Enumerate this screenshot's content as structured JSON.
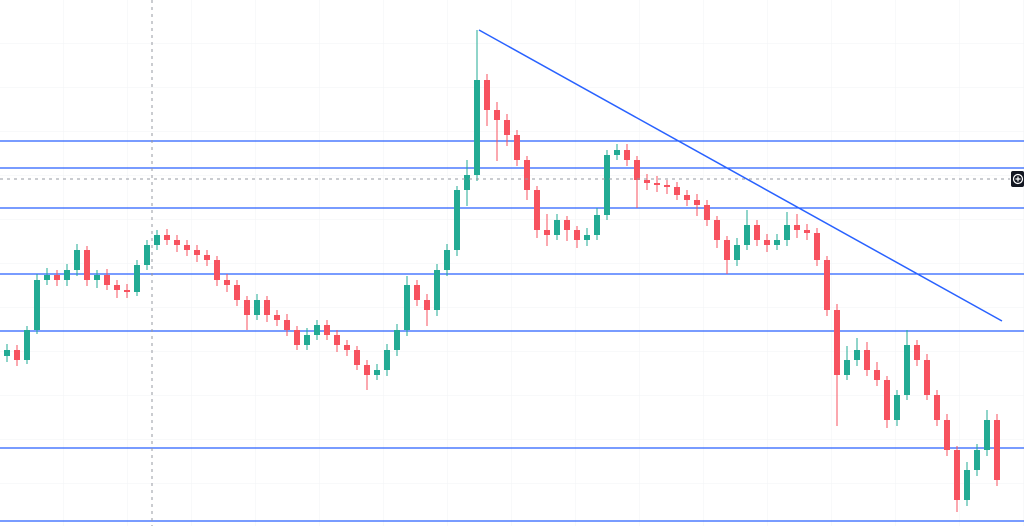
{
  "chart_data": {
    "type": "candlestick",
    "open": [
      170,
      176,
      166,
      196,
      246,
      251,
      246,
      256,
      276,
      246,
      251,
      241,
      236,
      234,
      261,
      281,
      291,
      286,
      281,
      276,
      271,
      266,
      246,
      241,
      226,
      211,
      226,
      211,
      206,
      196,
      181,
      191,
      201,
      191,
      181,
      176,
      161,
      151,
      156,
      176,
      196,
      241,
      226,
      216,
      256,
      276,
      336,
      351,
      446,
      416,
      406,
      391,
      366,
      336,
      296,
      291,
      306,
      296,
      286,
      291,
      311,
      371,
      376,
      366,
      346,
      343,
      341,
      339,
      331,
      326,
      321,
      306,
      286,
      266,
      281,
      301,
      286,
      281,
      286,
      301,
      296,
      293,
      266,
      216,
      151,
      166,
      176,
      156,
      146,
      106,
      131,
      181,
      166,
      131,
      106,
      76,
      26,
      56,
      76,
      106
    ],
    "high": [
      182,
      181,
      200,
      252,
      258,
      256,
      262,
      282,
      280,
      256,
      257,
      246,
      242,
      266,
      286,
      296,
      297,
      291,
      286,
      281,
      276,
      270,
      252,
      246,
      230,
      232,
      230,
      216,
      212,
      200,
      198,
      206,
      206,
      196,
      186,
      180,
      166,
      162,
      182,
      202,
      250,
      246,
      232,
      262,
      282,
      340,
      366,
      496,
      452,
      424,
      412,
      396,
      370,
      340,
      312,
      312,
      310,
      300,
      298,
      318,
      376,
      382,
      382,
      370,
      352,
      350,
      346,
      344,
      336,
      332,
      326,
      310,
      290,
      288,
      316,
      306,
      292,
      292,
      314,
      312,
      302,
      298,
      270,
      222,
      180,
      188,
      184,
      164,
      150,
      136,
      196,
      186,
      172,
      136,
      112,
      80,
      64,
      82,
      116,
      112
    ],
    "low": [
      164,
      160,
      162,
      192,
      241,
      240,
      240,
      250,
      240,
      238,
      236,
      228,
      228,
      230,
      256,
      276,
      281,
      274,
      270,
      264,
      260,
      240,
      234,
      220,
      196,
      206,
      204,
      200,
      190,
      176,
      176,
      186,
      186,
      174,
      170,
      156,
      136,
      146,
      150,
      170,
      190,
      220,
      200,
      210,
      250,
      270,
      320,
      345,
      400,
      365,
      380,
      360,
      326,
      288,
      280,
      286,
      285,
      278,
      280,
      286,
      306,
      366,
      360,
      318,
      336,
      334,
      332,
      326,
      320,
      310,
      300,
      278,
      252,
      260,
      276,
      280,
      274,
      276,
      280,
      288,
      286,
      260,
      210,
      100,
      146,
      160,
      150,
      140,
      98,
      100,
      126,
      160,
      126,
      100,
      70,
      14,
      20,
      50,
      70,
      40
    ],
    "close": [
      176,
      166,
      196,
      246,
      251,
      246,
      256,
      276,
      246,
      251,
      241,
      236,
      234,
      261,
      281,
      291,
      286,
      281,
      276,
      271,
      266,
      246,
      241,
      226,
      211,
      226,
      211,
      206,
      196,
      181,
      191,
      201,
      191,
      181,
      176,
      161,
      151,
      156,
      176,
      196,
      241,
      226,
      216,
      256,
      276,
      336,
      351,
      446,
      416,
      406,
      391,
      366,
      336,
      296,
      291,
      306,
      296,
      286,
      291,
      311,
      371,
      376,
      366,
      346,
      343,
      341,
      339,
      331,
      326,
      321,
      306,
      286,
      266,
      281,
      301,
      286,
      281,
      286,
      301,
      296,
      293,
      266,
      216,
      151,
      166,
      176,
      156,
      146,
      106,
      131,
      181,
      166,
      131,
      106,
      76,
      26,
      56,
      76,
      106,
      46
    ],
    "up_color": "#22ab94",
    "down_color": "#f7525f",
    "ylim": [
      0,
      526
    ],
    "hlines": {
      "values": [
        385,
        358,
        318,
        252,
        195,
        78,
        5
      ],
      "color": "#2962ff"
    },
    "trendline": {
      "x": [
        47.2,
        99.5
      ],
      "y": [
        496,
        205
      ],
      "color": "#2962ff"
    }
  }
}
